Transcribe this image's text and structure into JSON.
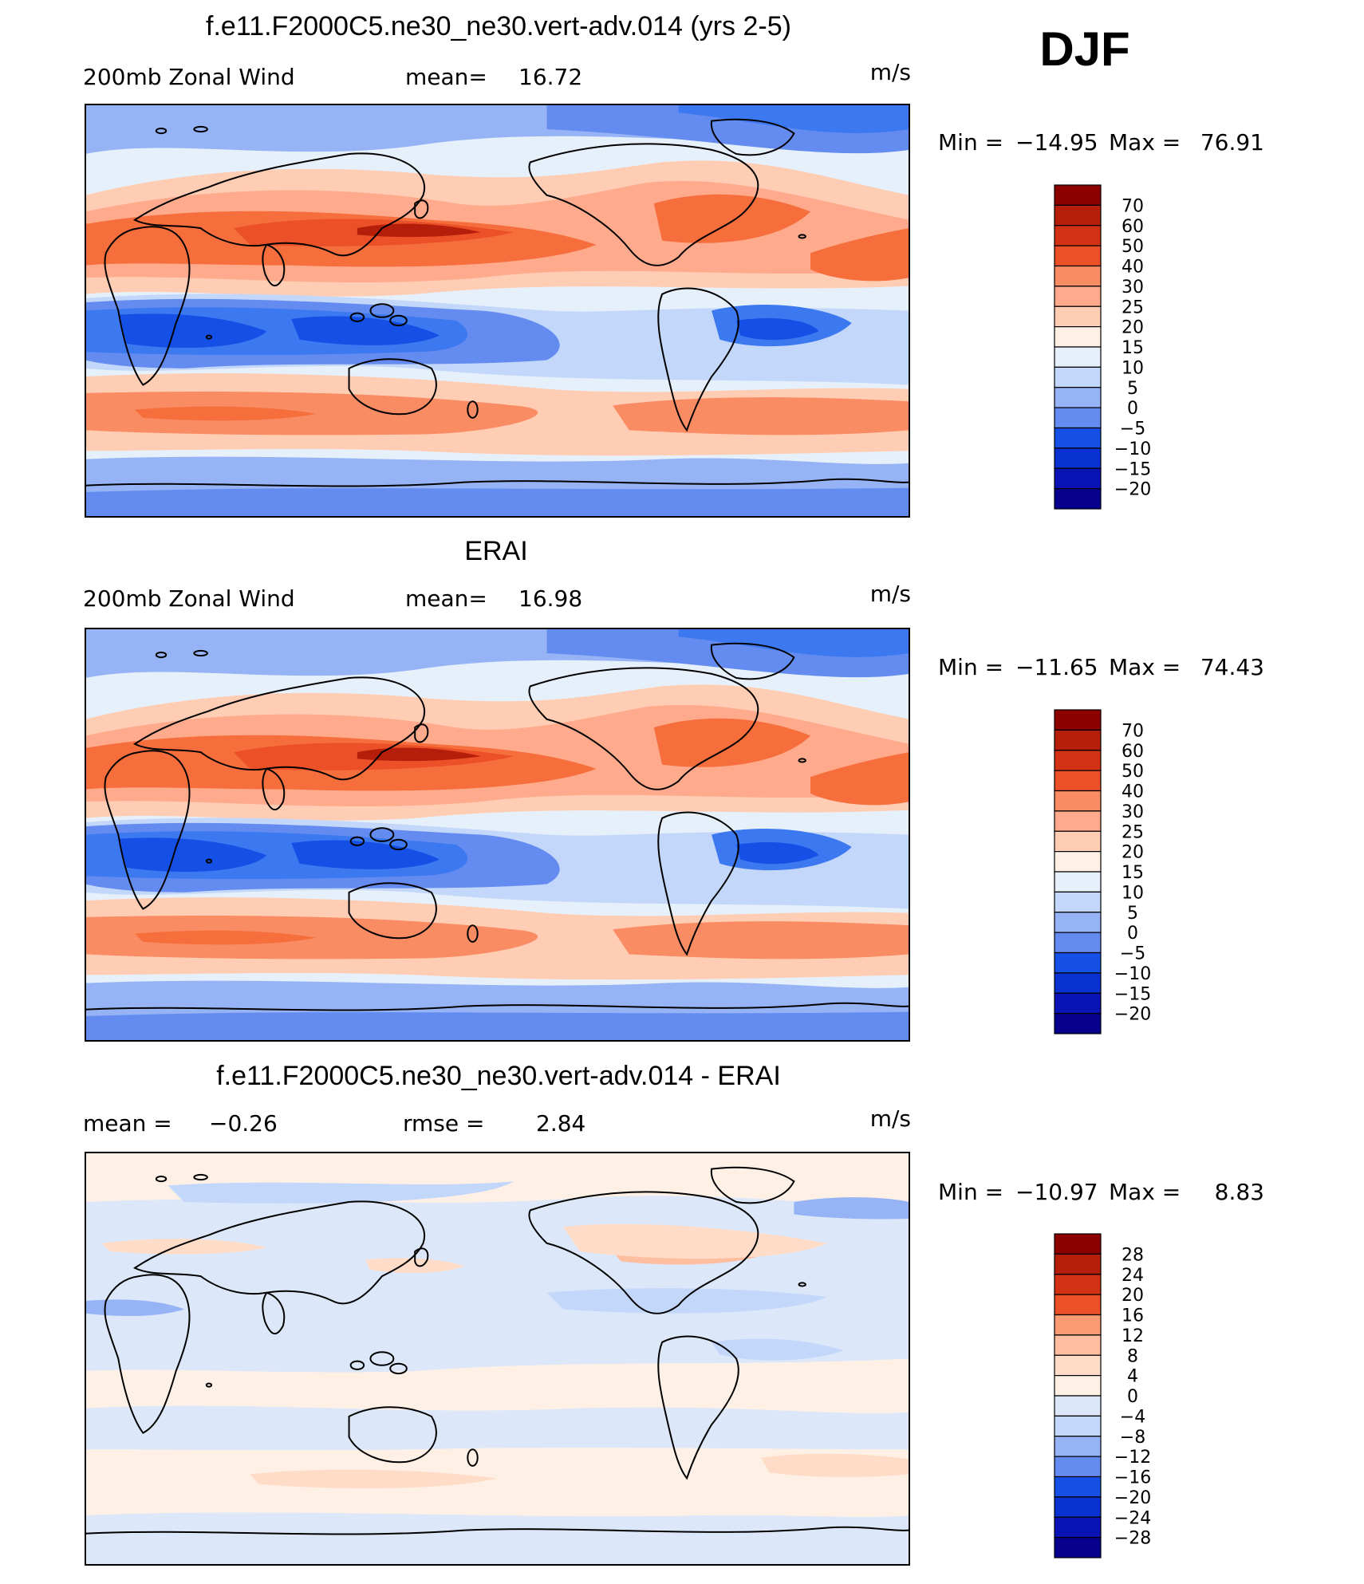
{
  "season": "DJF",
  "palettes": {
    "wind": [
      "#06008c",
      "#0a14b4",
      "#0a32d2",
      "#1450e6",
      "#3c78f0",
      "#648cf0",
      "#96b4f5",
      "#c3d7fa",
      "#e6f0fa",
      "#fff0e6",
      "#ffcdb4",
      "#ffaa8c",
      "#fa8c64",
      "#f56e3c",
      "#eb5028",
      "#d23214",
      "#b41e0a",
      "#8c0000"
    ],
    "diff": [
      "#06008c",
      "#0a14b4",
      "#0a32d2",
      "#1450e6",
      "#3c78f0",
      "#648cf0",
      "#96b4f5",
      "#c3d7fa",
      "#dce8fa",
      "#fff0e6",
      "#ffdcc8",
      "#ffbea0",
      "#fa9b73",
      "#f56e3c",
      "#eb5028",
      "#d23214",
      "#b41e0a",
      "#8c0000"
    ]
  },
  "chart_data": [
    {
      "type": "heatmap",
      "title": "f.e11.F2000C5.ne30_ne30.vert-adv.014 (yrs 2-5)",
      "left_label": "200mb  Zonal  Wind",
      "stat1_label": "mean=",
      "stat1_value": "16.72",
      "stat2_label": "",
      "stat2_value": "",
      "units": "m/s",
      "min_label": "Min  =",
      "min_value": "−14.95",
      "max_label": "Max  =",
      "max_value": "76.91",
      "palette": "wind",
      "colorbar_ticks": [
        "70",
        "60",
        "50",
        "40",
        "30",
        "25",
        "20",
        "15",
        "10",
        "5",
        "0",
        "−5",
        "−10",
        "−15",
        "−20"
      ]
    },
    {
      "type": "heatmap",
      "title": "ERAI",
      "left_label": "200mb  Zonal  Wind",
      "stat1_label": "mean=",
      "stat1_value": "16.98",
      "stat2_label": "",
      "stat2_value": "",
      "units": "m/s",
      "min_label": "Min  =",
      "min_value": "−11.65",
      "max_label": "Max  =",
      "max_value": "74.43",
      "palette": "wind",
      "colorbar_ticks": [
        "70",
        "60",
        "50",
        "40",
        "30",
        "25",
        "20",
        "15",
        "10",
        "5",
        "0",
        "−5",
        "−10",
        "−15",
        "−20"
      ]
    },
    {
      "type": "heatmap",
      "title": "f.e11.F2000C5.ne30_ne30.vert-adv.014 - ERAI",
      "left_label": "mean  =",
      "stat1_label": "",
      "stat1_value": "−0.26",
      "stat2_label": "rmse  =",
      "stat2_value": "2.84",
      "units": "m/s",
      "min_label": "Min  =",
      "min_value": "−10.97",
      "max_label": "Max  =",
      "max_value": "8.83",
      "palette": "diff",
      "colorbar_ticks": [
        "28",
        "24",
        "20",
        "16",
        "12",
        "8",
        "4",
        "0",
        "−4",
        "−8",
        "−12",
        "−16",
        "−20",
        "−24",
        "−28"
      ]
    }
  ]
}
